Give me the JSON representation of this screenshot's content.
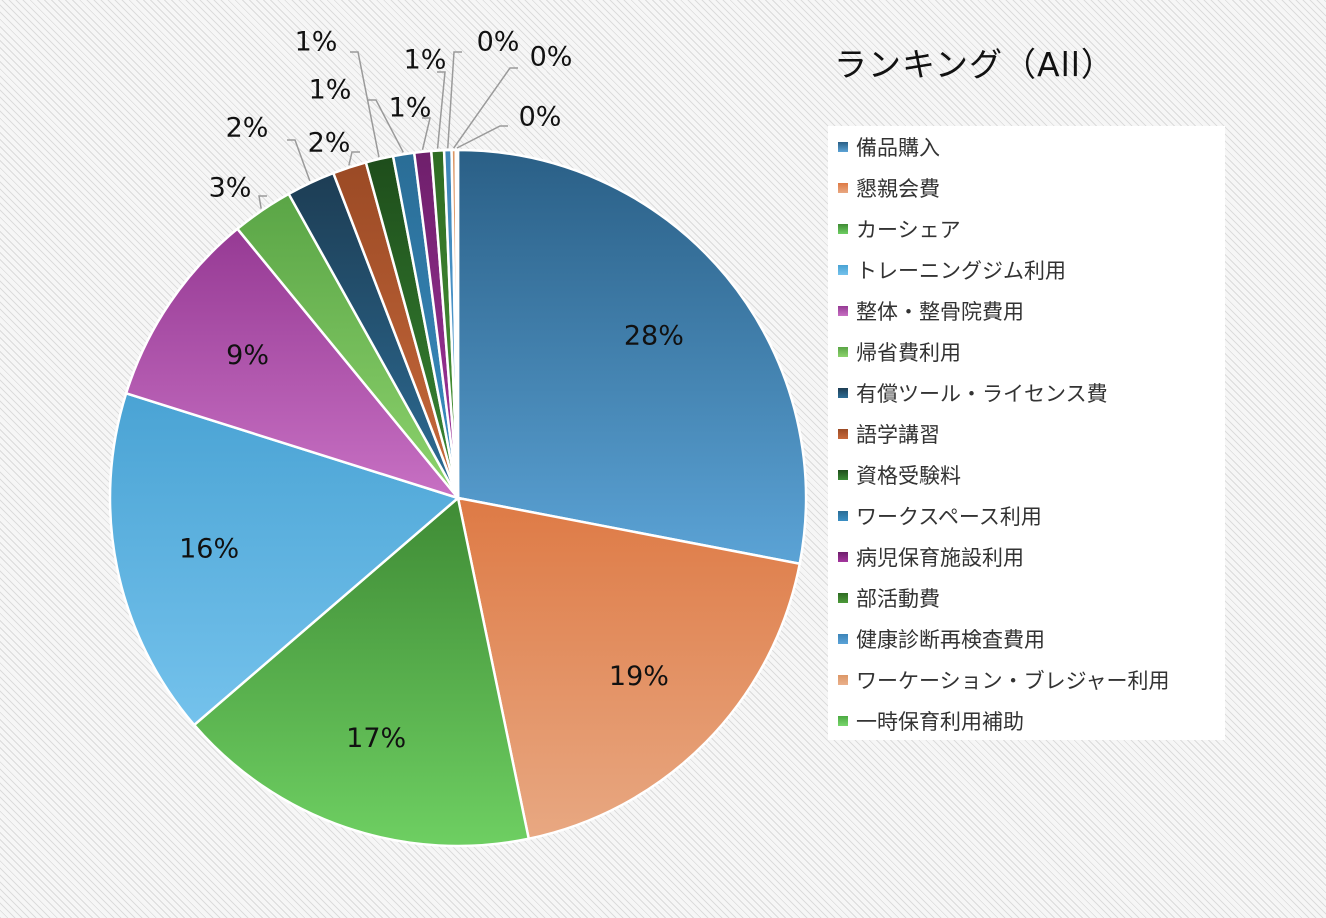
{
  "chart_data": {
    "type": "pie",
    "title": "ランキング（All）",
    "legend_position": "right",
    "series": [
      {
        "name": "",
        "slices": [
          {
            "label": "備品購入",
            "value": 28.6,
            "data_label": "28%",
            "color": "#5ba3d6",
            "dark": "#2a5f86"
          },
          {
            "label": "懇親会費",
            "value": 19.1,
            "data_label": "19%",
            "color": "#e8a882",
            "dark": "#de7a45"
          },
          {
            "label": "カーシェア",
            "value": 17.3,
            "data_label": "17%",
            "color": "#6ecf62",
            "dark": "#3f8b35"
          },
          {
            "label": "トレーニングジム利用",
            "value": 16.5,
            "data_label": "16%",
            "color": "#74c2ec",
            "dark": "#4aa3d4"
          },
          {
            "label": "整体・整骨院費用",
            "value": 9.4,
            "data_label": "9%",
            "color": "#c770c3",
            "dark": "#963a94"
          },
          {
            "label": "帰省費利用",
            "value": 2.9,
            "data_label": "3%",
            "color": "#8dd36d",
            "dark": "#5aa546"
          },
          {
            "label": "有償ツール・ライセンス費",
            "value": 2.3,
            "data_label": "2%",
            "color": "#2d6d96",
            "dark": "#1d3d54"
          },
          {
            "label": "語学講習",
            "value": 1.6,
            "data_label": "2%",
            "color": "#c86a3c",
            "dark": "#9b4a25"
          },
          {
            "label": "資格受験料",
            "value": 1.3,
            "data_label": "1%",
            "color": "#3a8a35",
            "dark": "#1e4d1b"
          },
          {
            "label": "ワークスペース利用",
            "value": 1.0,
            "data_label": "1%",
            "color": "#3a8fc4",
            "dark": "#2a6d96"
          },
          {
            "label": "病児保育施設利用",
            "value": 0.8,
            "data_label": "1%",
            "color": "#a4369e",
            "dark": "#6e1f6b"
          },
          {
            "label": "部活動費",
            "value": 0.6,
            "data_label": "1%",
            "color": "#4d9a3a",
            "dark": "#2e6b23"
          },
          {
            "label": "健康診断再検査費用",
            "value": 0.35,
            "data_label": "0%",
            "color": "#5aa3d8",
            "dark": "#3d85b8"
          },
          {
            "label": "ワーケーション・ブレジャー利用",
            "value": 0.2,
            "data_label": "0%",
            "color": "#eab08c",
            "dark": "#dc9766"
          },
          {
            "label": "一時保育利用補助",
            "value": 0.1,
            "data_label": "0%",
            "color": "#78d66c",
            "dark": "#4caa42"
          }
        ]
      }
    ]
  }
}
